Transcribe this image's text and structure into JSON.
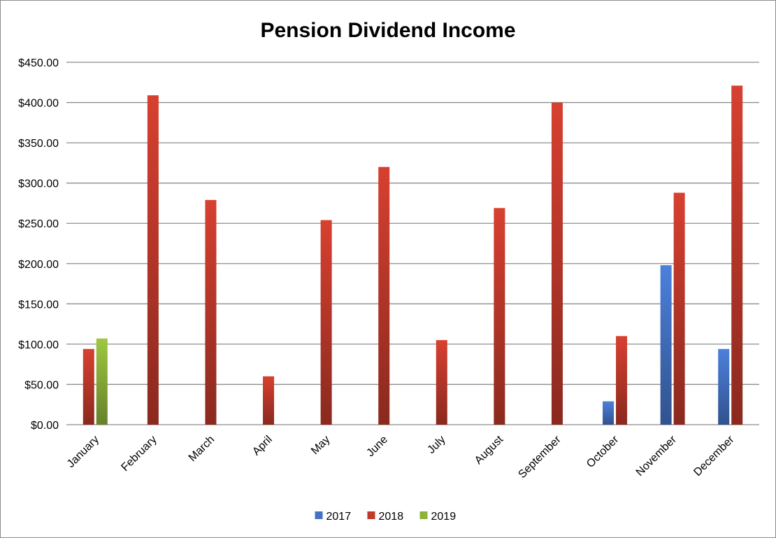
{
  "chart_data": {
    "type": "bar",
    "title": "Pension Dividend Income",
    "xlabel": "",
    "ylabel": "",
    "categories": [
      "January",
      "February",
      "March",
      "April",
      "May",
      "June",
      "July",
      "August",
      "September",
      "October",
      "November",
      "December"
    ],
    "series": [
      {
        "name": "2017",
        "color": "#4472c4",
        "values": [
          null,
          null,
          null,
          null,
          null,
          null,
          null,
          null,
          null,
          29,
          198,
          94
        ]
      },
      {
        "name": "2018",
        "color": "#c0392b",
        "values": [
          94,
          409,
          279,
          60,
          254,
          320,
          105,
          269,
          400,
          110,
          288,
          421
        ]
      },
      {
        "name": "2019",
        "color": "#8db33a",
        "values": [
          107,
          null,
          null,
          null,
          null,
          null,
          null,
          null,
          null,
          null,
          null,
          null
        ]
      }
    ],
    "ylim": [
      0,
      450
    ],
    "yticks": [
      "$0.00",
      "$50.00",
      "$100.00",
      "$150.00",
      "$200.00",
      "$250.00",
      "$300.00",
      "$350.00",
      "$400.00",
      "$450.00"
    ],
    "grid": true,
    "legend_position": "bottom"
  }
}
